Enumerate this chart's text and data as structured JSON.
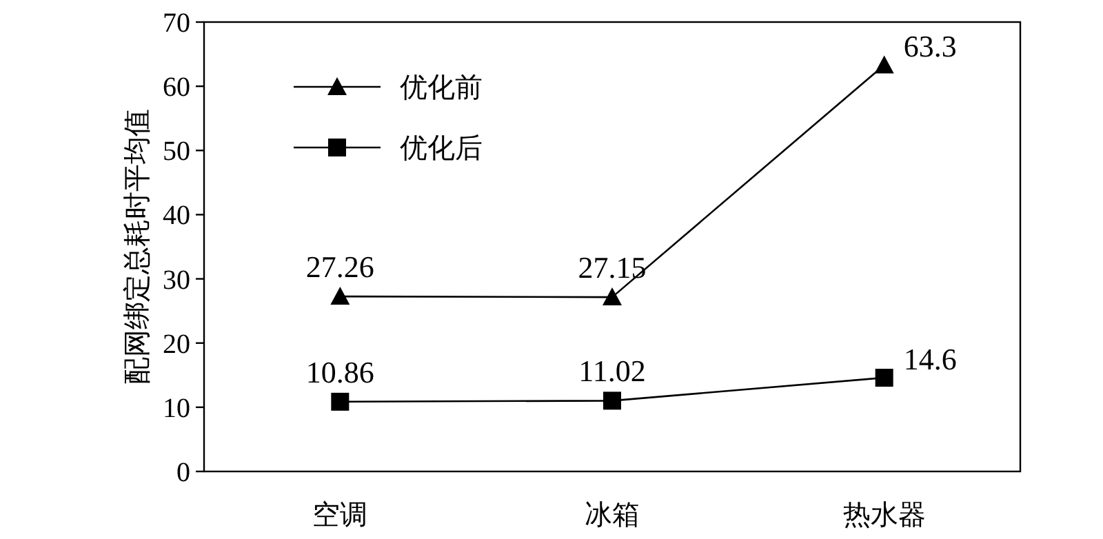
{
  "chart_data": {
    "type": "line",
    "ylabel": "配网绑定总耗时平均值",
    "categories": [
      "空调",
      "冰箱",
      "热水器"
    ],
    "ylim": [
      0,
      70
    ],
    "yticks": [
      0,
      10,
      20,
      30,
      40,
      50,
      60,
      70
    ],
    "legend": "top left",
    "data_labels": true,
    "grid": false,
    "series": [
      {
        "name": "优化前",
        "color": "#000000",
        "marker": "triangle",
        "values": [
          27.26,
          27.15,
          63.3
        ]
      },
      {
        "name": "优化后",
        "color": "#000000",
        "marker": "square",
        "values": [
          10.86,
          11.02,
          14.6
        ]
      }
    ]
  }
}
